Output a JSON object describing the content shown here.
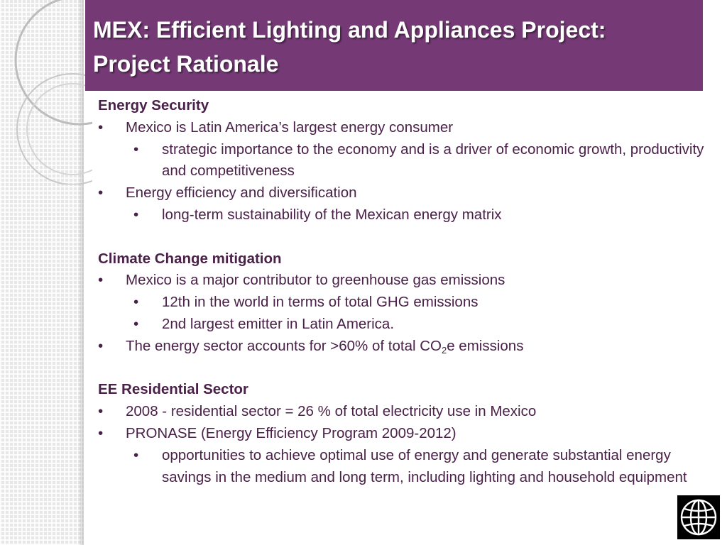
{
  "title": {
    "line1": "MEX: Efficient Lighting and Appliances Project:",
    "line2": "Project Rationale"
  },
  "bullet_char": "•",
  "sections": {
    "energy_security": {
      "heading": "Energy Security",
      "b1": "Mexico is Latin America’s largest energy consumer",
      "b1_sub1": "strategic importance to the economy and is a driver of economic growth, productivity and competitiveness",
      "b2": "Energy efficiency and diversification",
      "b2_sub1": "long-term sustainability of the Mexican energy matrix"
    },
    "climate": {
      "heading": "Climate Change mitigation",
      "b1": "Mexico is a major contributor to greenhouse gas emissions",
      "b1_sub1": "12th in the world in terms of total GHG emissions",
      "b1_sub2": "2nd largest emitter in Latin America.",
      "b2_pre": "The energy sector accounts for >60% of total CO",
      "b2_sub": "2",
      "b2_post": "e emissions"
    },
    "ee_residential": {
      "heading": "EE Residential Sector",
      "b1": "2008 - residential sector = 26 % of total electricity use in Mexico",
      "b2": "PRONASE (Energy Efficiency Program 2009-2012)",
      "b2_sub1": "opportunities to achieve optimal use of energy and generate substantial energy savings in the medium and long term, including lighting and household equipment"
    }
  },
  "colors": {
    "title_bar": "#753a76",
    "title_text": "#ffffff",
    "body_text": "#4a2148"
  },
  "logo": {
    "icon": "globe-icon"
  }
}
